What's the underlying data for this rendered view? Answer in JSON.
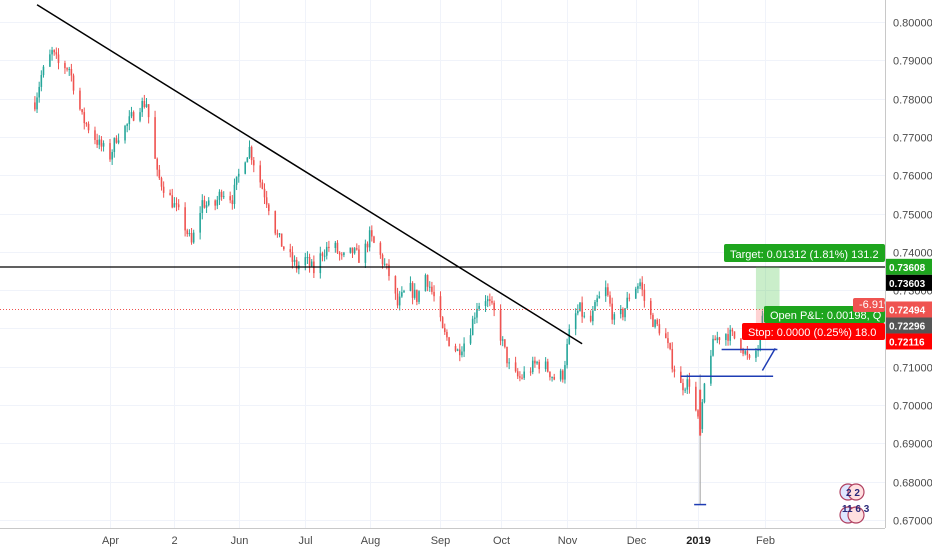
{
  "colors": {
    "up": "#26a69a",
    "down": "#ef5350",
    "grid": "#f0f3fa",
    "trendline": "#000000",
    "horizontal_line": "#000000",
    "last_price_line": "#ef5350",
    "target": "#1ea51e",
    "stop": "#ff0000",
    "open_pnl": "#1ea51e",
    "pattern": "#1e3cb4",
    "axis_text": "#4a4a4a"
  },
  "chart_data": {
    "type": "candlestick",
    "y_axis": {
      "min": 0.6665,
      "max": 0.8045,
      "ticks": [
        0.8,
        0.79,
        0.78,
        0.77,
        0.76,
        0.75,
        0.74,
        0.73,
        0.72,
        0.71,
        0.7,
        0.69,
        0.68,
        0.67
      ],
      "tick_labels": [
        "0.80000",
        "0.79000",
        "0.78000",
        "0.77000",
        "0.76000",
        "0.75000",
        "0.74000",
        "0.73000",
        "0.72000",
        "0.71000",
        "0.70000",
        "0.69000",
        "0.68000",
        "0.67000"
      ]
    },
    "x_axis": {
      "labels": [
        {
          "label": "Apr",
          "date": "2018-04-02"
        },
        {
          "label": "2",
          "date": "2018-05-02"
        },
        {
          "label": "Jun",
          "date": "2018-06-01"
        },
        {
          "label": "Jul",
          "date": "2018-07-02"
        },
        {
          "label": "Aug",
          "date": "2018-08-01"
        },
        {
          "label": "Sep",
          "date": "2018-09-03"
        },
        {
          "label": "Oct",
          "date": "2018-10-01"
        },
        {
          "label": "Nov",
          "date": "2018-11-01"
        },
        {
          "label": "Dec",
          "date": "2018-12-03"
        },
        {
          "label": "2019",
          "date": "2019-01-01",
          "bold": true
        },
        {
          "label": "Feb",
          "date": "2019-02-01"
        }
      ]
    },
    "price_path": [
      [
        "2018-02-26",
        0.779
      ],
      [
        "2018-03-01",
        0.786
      ],
      [
        "2018-03-06",
        0.792
      ],
      [
        "2018-03-09",
        0.789
      ],
      [
        "2018-03-14",
        0.788
      ],
      [
        "2018-03-20",
        0.775
      ],
      [
        "2018-03-23",
        0.7725
      ],
      [
        "2018-03-28",
        0.768
      ],
      [
        "2018-04-02",
        0.765
      ],
      [
        "2018-04-05",
        0.77
      ],
      [
        "2018-04-10",
        0.773
      ],
      [
        "2018-04-15",
        0.778
      ],
      [
        "2018-04-19",
        0.779
      ],
      [
        "2018-04-24",
        0.76
      ],
      [
        "2018-04-28",
        0.756
      ],
      [
        "2018-05-02",
        0.752
      ],
      [
        "2018-05-06",
        0.748
      ],
      [
        "2018-05-10",
        0.742
      ],
      [
        "2018-05-15",
        0.753
      ],
      [
        "2018-05-20",
        0.751
      ],
      [
        "2018-05-24",
        0.756
      ],
      [
        "2018-05-29",
        0.754
      ],
      [
        "2018-06-03",
        0.764
      ],
      [
        "2018-06-06",
        0.767
      ],
      [
        "2018-06-10",
        0.76
      ],
      [
        "2018-06-15",
        0.752
      ],
      [
        "2018-06-19",
        0.744
      ],
      [
        "2018-06-23",
        0.74
      ],
      [
        "2018-06-28",
        0.736
      ],
      [
        "2018-07-02",
        0.738
      ],
      [
        "2018-07-06",
        0.735
      ],
      [
        "2018-07-10",
        0.74
      ],
      [
        "2018-07-15",
        0.742
      ],
      [
        "2018-07-19",
        0.738
      ],
      [
        "2018-07-24",
        0.74
      ],
      [
        "2018-07-28",
        0.738
      ],
      [
        "2018-08-01",
        0.744
      ],
      [
        "2018-08-05",
        0.74
      ],
      [
        "2018-08-10",
        0.734
      ],
      [
        "2018-08-14",
        0.726
      ],
      [
        "2018-08-19",
        0.731
      ],
      [
        "2018-08-23",
        0.728
      ],
      [
        "2018-08-27",
        0.734
      ],
      [
        "2018-08-31",
        0.728
      ],
      [
        "2018-09-04",
        0.719
      ],
      [
        "2018-09-08",
        0.716
      ],
      [
        "2018-09-11",
        0.714
      ],
      [
        "2018-09-16",
        0.718
      ],
      [
        "2018-09-20",
        0.726
      ],
      [
        "2018-09-24",
        0.728
      ],
      [
        "2018-09-28",
        0.724
      ],
      [
        "2018-10-02",
        0.716
      ],
      [
        "2018-10-06",
        0.708
      ],
      [
        "2018-10-10",
        0.707
      ],
      [
        "2018-10-14",
        0.709
      ],
      [
        "2018-10-18",
        0.711
      ],
      [
        "2018-10-22",
        0.71
      ],
      [
        "2018-10-26",
        0.707
      ],
      [
        "2018-10-30",
        0.708
      ],
      [
        "2018-11-03",
        0.722
      ],
      [
        "2018-11-07",
        0.725
      ],
      [
        "2018-11-11",
        0.72
      ],
      [
        "2018-11-15",
        0.727
      ],
      [
        "2018-11-19",
        0.73
      ],
      [
        "2018-11-23",
        0.722
      ],
      [
        "2018-11-27",
        0.724
      ],
      [
        "2018-12-01",
        0.73
      ],
      [
        "2018-12-05",
        0.732
      ],
      [
        "2018-12-08",
        0.725
      ],
      [
        "2018-12-12",
        0.721
      ],
      [
        "2018-12-16",
        0.719
      ],
      [
        "2018-12-20",
        0.711
      ],
      [
        "2018-12-24",
        0.705
      ],
      [
        "2018-12-28",
        0.706
      ],
      [
        "2019-01-02",
        0.693
      ],
      [
        "2019-01-05",
        0.711
      ],
      [
        "2019-01-09",
        0.717
      ],
      [
        "2019-01-13",
        0.719
      ],
      [
        "2019-01-17",
        0.718
      ],
      [
        "2019-01-21",
        0.716
      ],
      [
        "2019-01-25",
        0.711
      ],
      [
        "2019-01-29",
        0.715
      ],
      [
        "2019-02-01",
        0.7249
      ]
    ],
    "spike": {
      "date": "2019-01-02",
      "high": 0.708,
      "low": 0.674
    },
    "trendline": {
      "start": [
        "2018-02-27",
        0.8045
      ],
      "end": [
        "2018-11-08",
        0.716
      ]
    },
    "horizontal_line": {
      "value": 0.73603
    },
    "last_price_line": {
      "value": 0.72494
    },
    "target_box": {
      "start": "2019-01-28",
      "end": "2019-02-08",
      "top": 0.73608,
      "bottom": 0.72494
    },
    "stop_box": {
      "start": "2019-01-28",
      "end": "2019-02-08",
      "top": 0.72494,
      "bottom": 0.72116
    },
    "pattern_lines": [
      [
        [
          "2019-01-12",
          0.7145
        ],
        [
          "2019-02-07",
          0.7145
        ]
      ],
      [
        [
          "2018-12-24",
          0.7075
        ],
        [
          "2019-02-05",
          0.7075
        ]
      ],
      [
        [
          "2019-01-31",
          0.709
        ],
        [
          "2019-02-06",
          0.7148
        ]
      ],
      [
        [
          "2019-02-02",
          0.7195
        ],
        [
          "2019-02-07",
          0.7242
        ]
      ]
    ],
    "price_tags": [
      {
        "value": 0.73608,
        "label": "0.73608",
        "bg": "#1ea51e",
        "fg": "#ffffff"
      },
      {
        "value": 0.73603,
        "label": "0.73603",
        "bg": "#000000",
        "fg": "#ffffff"
      },
      {
        "value": 0.72494,
        "label": "0.72494",
        "bg": "#ef5350",
        "fg": "#ffffff"
      },
      {
        "value": 0.72296,
        "label": "0.72296",
        "bg": "#555555",
        "fg": "#ffffff"
      },
      {
        "value": 0.72116,
        "label": "0.72116",
        "bg": "#ff0000",
        "fg": "#ffffff"
      }
    ]
  },
  "labels": {
    "target": "Target: 0.01312 (1.81%) 131.2",
    "stop": "Stop: 0.00",
    "stop_rest": "00 (0.25%) 18.0",
    "open_pnl": "Open P&L: 0.00198, Q",
    "pnl_percent": "-6.91%",
    "event_counts_top": "2  2",
    "event_counts_bottom": "11 6  3"
  }
}
